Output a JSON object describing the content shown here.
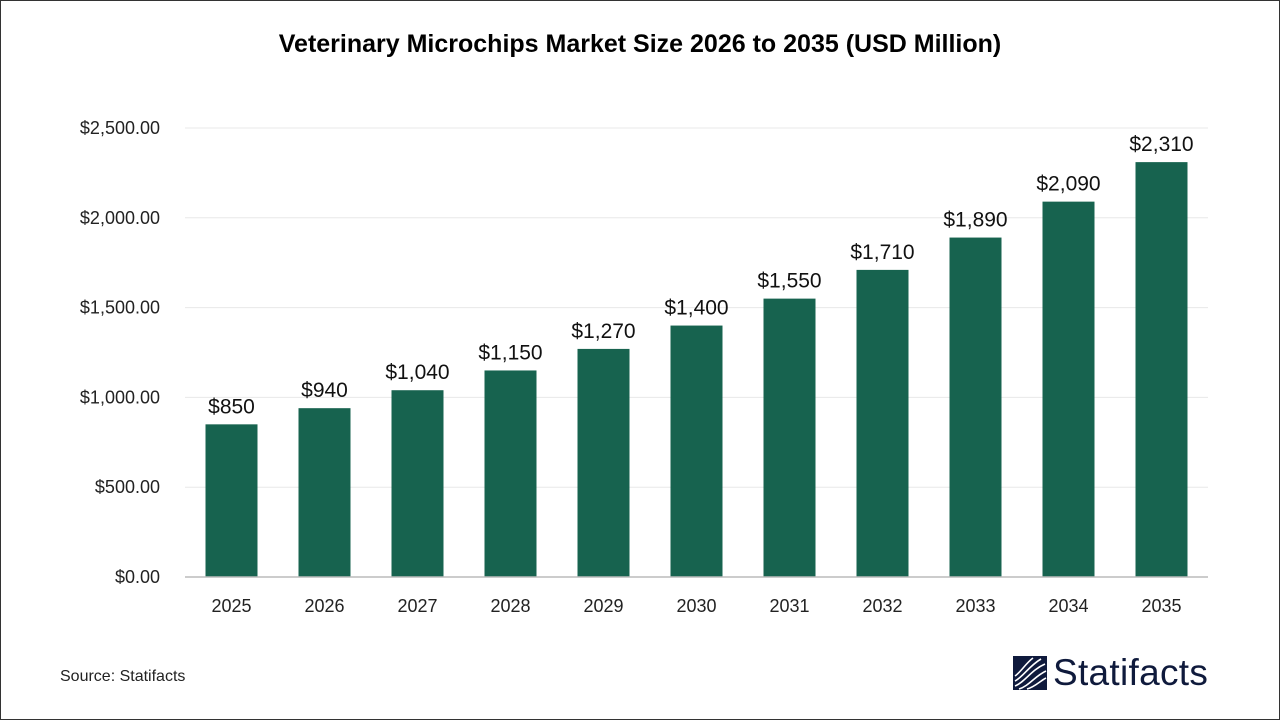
{
  "chart_data": {
    "type": "bar",
    "title": "Veterinary Microchips Market Size 2026 to 2035 (USD Million)",
    "categories": [
      "2025",
      "2026",
      "2027",
      "2028",
      "2029",
      "2030",
      "2031",
      "2032",
      "2033",
      "2034",
      "2035"
    ],
    "values": [
      850,
      940,
      1040,
      1150,
      1270,
      1400,
      1550,
      1710,
      1890,
      2090,
      2310
    ],
    "data_labels": [
      "$850",
      "$940",
      "$1,040",
      "$1,150",
      "$1,270",
      "$1,400",
      "$1,550",
      "$1,710",
      "$1,890",
      "$2,090",
      "$2,310"
    ],
    "ylim": [
      0,
      2500
    ],
    "yticks": [
      0,
      500,
      1000,
      1500,
      2000,
      2500
    ],
    "ytick_labels": [
      "$0.00",
      "$500.00",
      "$1,000.00",
      "$1,500.00",
      "$2,000.00",
      "$2,500.00"
    ],
    "xlabel": "",
    "ylabel": "",
    "grid": true,
    "bar_color": "#17634f"
  },
  "source": "Source: Statifacts",
  "logo": {
    "text": "Statifacts",
    "color": "#0f1a3c"
  }
}
